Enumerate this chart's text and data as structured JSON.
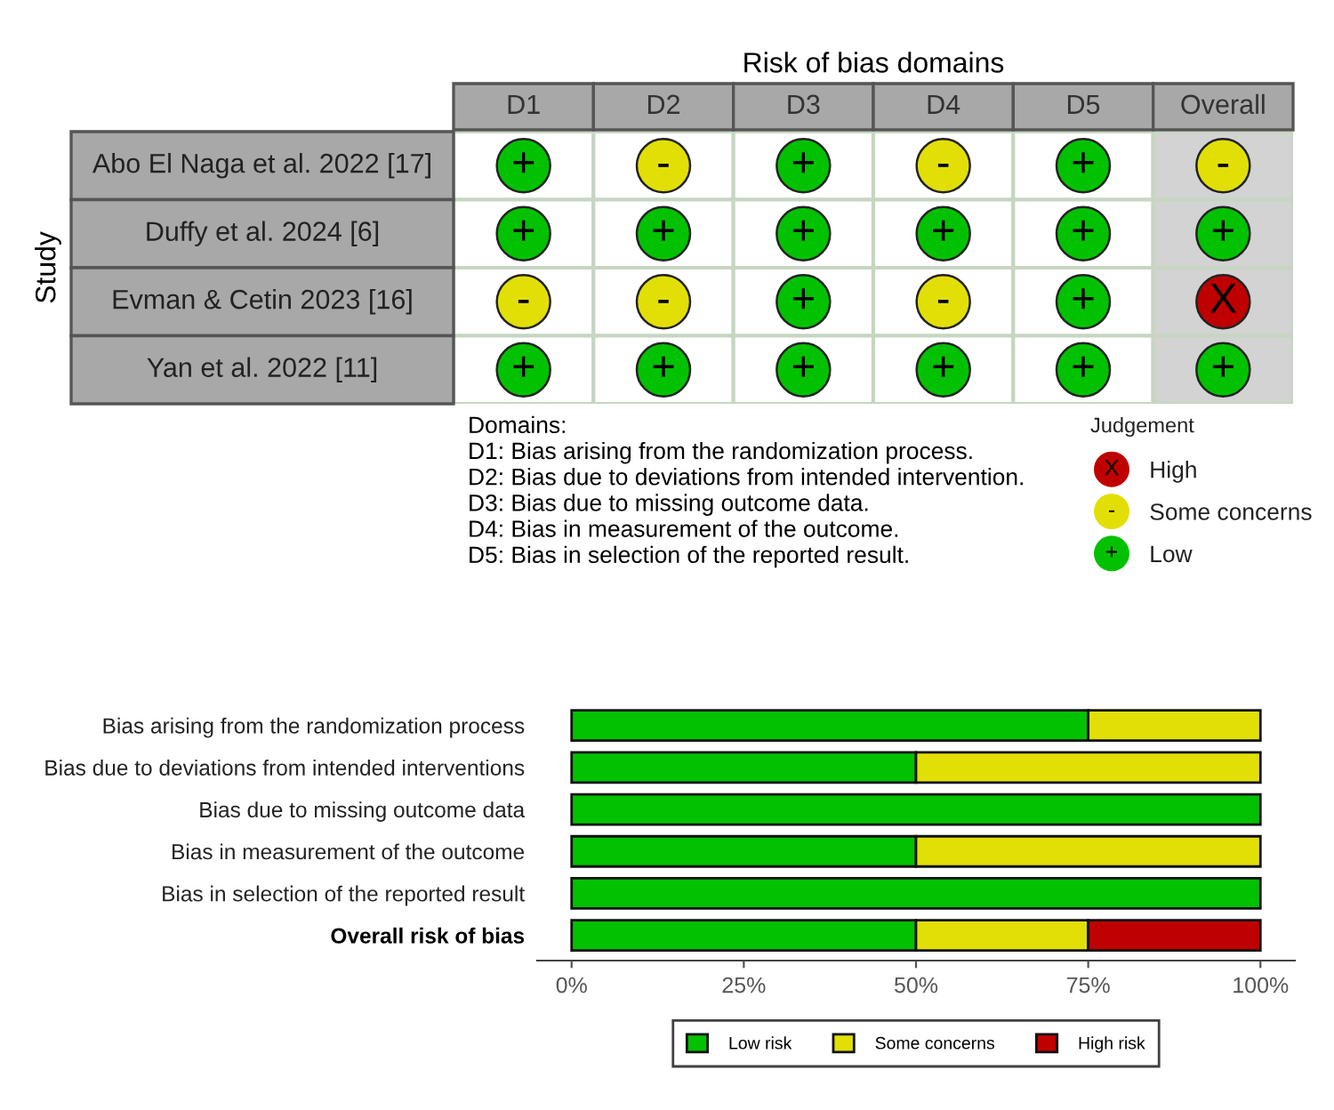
{
  "chart_data": [
    {
      "type": "heatmap",
      "title": "Risk of bias domains",
      "ylabel": "Study",
      "categories": [
        "D1",
        "D2",
        "D3",
        "D4",
        "D5",
        "Overall"
      ],
      "y_categories": [
        "Abo El Naga et al. 2022 [17]",
        "Duffy et al. 2024 [6]",
        "Evman & Cetin 2023 [16]",
        "Yan et al. 2022 [11]"
      ],
      "cells": [
        [
          "+",
          "-",
          "+",
          "-",
          "+",
          "-"
        ],
        [
          "+",
          "+",
          "+",
          "+",
          "+",
          "+"
        ],
        [
          "-",
          "-",
          "+",
          "-",
          "+",
          "X"
        ],
        [
          "+",
          "+",
          "+",
          "+",
          "+",
          "+"
        ]
      ],
      "colors": [
        [
          "#02c100",
          "#e2df07",
          "#02c100",
          "#e2df07",
          "#02c100",
          "#e2df07"
        ],
        [
          "#02c100",
          "#02c100",
          "#02c100",
          "#02c100",
          "#02c100",
          "#02c100"
        ],
        [
          "#e2df07",
          "#e2df07",
          "#02c100",
          "#e2df07",
          "#02c100",
          "#bf0000"
        ],
        [
          "#02c100",
          "#02c100",
          "#02c100",
          "#02c100",
          "#02c100",
          "#02c100"
        ]
      ],
      "annotations": [
        "Domains:",
        "D1: Bias arising from the randomization process.",
        "D2: Bias due to deviations from intended intervention.",
        "D3: Bias due to missing outcome data.",
        "D4: Bias in measurement of the outcome.",
        "D5: Bias in selection of the reported result."
      ]
    },
    {
      "type": "other",
      "title": "Judgement",
      "categories": [
        null
      ],
      "y_categories": [
        "High",
        "Some concerns",
        "Low"
      ],
      "cells": [
        [
          "X"
        ],
        [
          "-"
        ],
        [
          "+"
        ]
      ],
      "colors": [
        [
          "#bf0000"
        ],
        [
          "#e2df07"
        ],
        [
          "#02c100"
        ]
      ]
    },
    {
      "type": "bar",
      "orientation": "horizontal",
      "stacked": true,
      "categories": [
        "Bias arising from the randomization process",
        "Bias due to deviations from intended interventions",
        "Bias due to missing outcome data",
        "Bias in measurement of the outcome",
        "Bias in selection of the reported result",
        "Overall risk of bias"
      ],
      "series": [
        {
          "name": "Low risk",
          "color": "#02c100",
          "values": [
            75,
            50,
            100,
            50,
            100,
            50
          ]
        },
        {
          "name": "Some concerns",
          "color": "#e2df07",
          "values": [
            25,
            50,
            null,
            50,
            null,
            25
          ]
        },
        {
          "name": "High risk",
          "color": "#bf0000",
          "values": [
            null,
            null,
            null,
            null,
            null,
            25
          ]
        }
      ],
      "xlim": [
        -5,
        105
      ],
      "xticks": [
        {
          "value": 0,
          "label": "0%"
        },
        {
          "value": 25,
          "label": "25%"
        },
        {
          "value": 50,
          "label": "50%"
        },
        {
          "value": 75,
          "label": "75%"
        },
        {
          "value": 100,
          "label": "100%"
        }
      ],
      "legend": "bottom"
    }
  ]
}
